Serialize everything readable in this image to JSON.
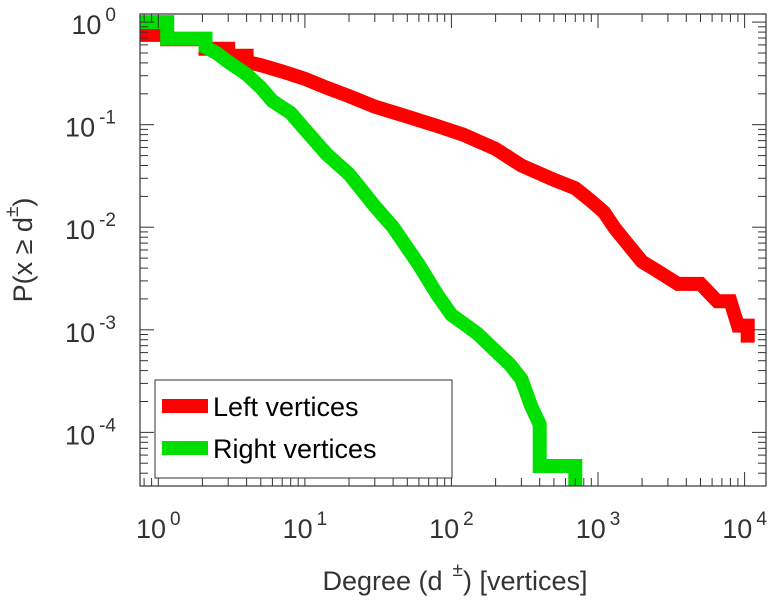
{
  "chart_data": {
    "type": "line",
    "xscale": "log",
    "yscale": "log",
    "xlim": [
      0.75,
      14000
    ],
    "ylim": [
      3e-05,
      1.2
    ],
    "xlabel": {
      "prefix": "Degree (d",
      "sup": "±",
      "suffix": ") [vertices]"
    },
    "ylabel": {
      "prefix": "P(x ≥ d",
      "sup": "±",
      "suffix": ")"
    },
    "xticks": [
      {
        "base": "10",
        "exp": "0",
        "value": 1
      },
      {
        "base": "10",
        "exp": "1",
        "value": 10
      },
      {
        "base": "10",
        "exp": "2",
        "value": 100
      },
      {
        "base": "10",
        "exp": "3",
        "value": 1000
      },
      {
        "base": "10",
        "exp": "4",
        "value": 10000
      }
    ],
    "yticks": [
      {
        "base": "10",
        "exp": "0",
        "value": 1
      },
      {
        "base": "10",
        "exp": "-1",
        "value": 0.1
      },
      {
        "base": "10",
        "exp": "-2",
        "value": 0.01
      },
      {
        "base": "10",
        "exp": "-3",
        "value": 0.001
      },
      {
        "base": "10",
        "exp": "-4",
        "value": 0.0001
      }
    ],
    "legend_position": "bottom-left",
    "series": [
      {
        "name": "Left vertices",
        "color": "#ff0000",
        "points": [
          [
            0.75,
            0.75
          ],
          [
            1.15,
            0.75
          ],
          [
            1.15,
            0.68
          ],
          [
            2.1,
            0.68
          ],
          [
            2.1,
            0.55
          ],
          [
            3,
            0.55
          ],
          [
            3,
            0.47
          ],
          [
            4,
            0.47
          ],
          [
            4,
            0.41
          ],
          [
            5,
            0.38
          ],
          [
            7,
            0.33
          ],
          [
            10,
            0.28
          ],
          [
            14,
            0.23
          ],
          [
            20,
            0.19
          ],
          [
            30,
            0.15
          ],
          [
            50,
            0.12
          ],
          [
            80,
            0.097
          ],
          [
            120,
            0.08
          ],
          [
            200,
            0.058
          ],
          [
            300,
            0.04
          ],
          [
            500,
            0.029
          ],
          [
            700,
            0.024
          ],
          [
            900,
            0.018
          ],
          [
            1100,
            0.014
          ],
          [
            1300,
            0.0098
          ],
          [
            1600,
            0.0068
          ],
          [
            2000,
            0.0046
          ],
          [
            2500,
            0.0038
          ],
          [
            3500,
            0.0028
          ],
          [
            5000,
            0.0028
          ],
          [
            6500,
            0.0019
          ],
          [
            8000,
            0.0019
          ],
          [
            9000,
            0.0011
          ],
          [
            10500,
            0.0011
          ],
          [
            10500,
            0.00075
          ]
        ]
      },
      {
        "name": "Right vertices",
        "color": "#00e000",
        "points": [
          [
            0.75,
            1
          ],
          [
            1.15,
            1
          ],
          [
            1.15,
            0.69
          ],
          [
            2.1,
            0.69
          ],
          [
            2.1,
            0.57
          ],
          [
            2.5,
            0.5
          ],
          [
            3,
            0.41
          ],
          [
            4,
            0.31
          ],
          [
            5,
            0.23
          ],
          [
            6,
            0.17
          ],
          [
            8,
            0.13
          ],
          [
            10,
            0.09
          ],
          [
            14,
            0.052
          ],
          [
            20,
            0.033
          ],
          [
            30,
            0.016
          ],
          [
            40,
            0.01
          ],
          [
            60,
            0.0043
          ],
          [
            80,
            0.0022
          ],
          [
            100,
            0.0014
          ],
          [
            150,
            0.00092
          ],
          [
            200,
            0.00062
          ],
          [
            250,
            0.00046
          ],
          [
            300,
            0.00033
          ],
          [
            350,
            0.00018
          ],
          [
            400,
            0.00012
          ],
          [
            400,
            4.7e-05
          ],
          [
            700,
            4.7e-05
          ],
          [
            700,
            3e-05
          ]
        ]
      }
    ]
  }
}
